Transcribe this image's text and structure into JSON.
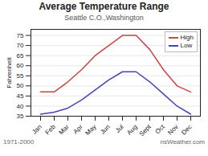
{
  "chart_data": {
    "type": "line",
    "title": "Average Temperature Range",
    "subtitle": "Seattle C.O.,Washington",
    "ylabel": "Fahrenheit",
    "categories": [
      "Jan",
      "Feb",
      "Mar",
      "Apr",
      "May",
      "Jun",
      "Jul",
      "Aug",
      "Sept",
      "Oct",
      "Nov",
      "Dec"
    ],
    "series": [
      {
        "name": "High",
        "color": "#cc4444",
        "values": [
          47,
          47,
          52,
          58,
          65,
          70,
          75,
          75,
          68,
          58,
          50,
          47
        ]
      },
      {
        "name": "Low",
        "color": "#4444bb",
        "values": [
          36,
          37,
          39,
          43,
          48,
          53,
          57,
          57,
          52,
          46,
          40,
          36
        ]
      }
    ],
    "ylim": [
      35,
      78
    ],
    "yticks": [
      35,
      40,
      45,
      50,
      55,
      60,
      65,
      70,
      75
    ],
    "grid": true,
    "legend": "upper right",
    "annotations": [
      "1971-2000",
      "nsWeather.com"
    ]
  }
}
